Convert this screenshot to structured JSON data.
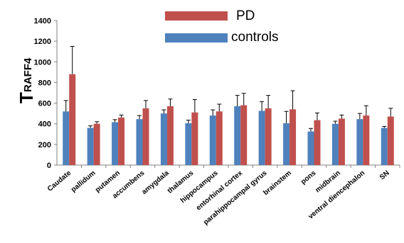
{
  "chart_data": {
    "type": "bar",
    "ylabel_main": "T",
    "ylabel_sub": "RAFF4",
    "ylim": [
      0,
      1400
    ],
    "yticks": [
      0,
      200,
      400,
      600,
      800,
      1000,
      1200,
      1400
    ],
    "categories": [
      "Caudate",
      "pallidum",
      "putamen",
      "accumbens",
      "amygdala",
      "thalamus",
      "hippocampus",
      "entorhinal cortex",
      "parahippocampal gyrus",
      "brainstem",
      "pons",
      "midbrain",
      "ventral diencephalon",
      "SN"
    ],
    "series": [
      {
        "name": "controls",
        "color": "#4f81bd",
        "values": [
          520,
          360,
          415,
          445,
          500,
          405,
          480,
          570,
          525,
          405,
          325,
          400,
          445,
          360
        ],
        "errors": [
          105,
          20,
          25,
          35,
          35,
          30,
          55,
          105,
          90,
          115,
          30,
          25,
          55,
          15
        ]
      },
      {
        "name": "PD",
        "color": "#c0504d",
        "values": [
          880,
          400,
          460,
          550,
          570,
          510,
          520,
          580,
          550,
          540,
          435,
          450,
          480,
          470
        ],
        "errors": [
          270,
          20,
          25,
          75,
          70,
          125,
          70,
          115,
          125,
          180,
          70,
          35,
          95,
          80
        ]
      }
    ],
    "legend": "top-center",
    "grid": false
  }
}
